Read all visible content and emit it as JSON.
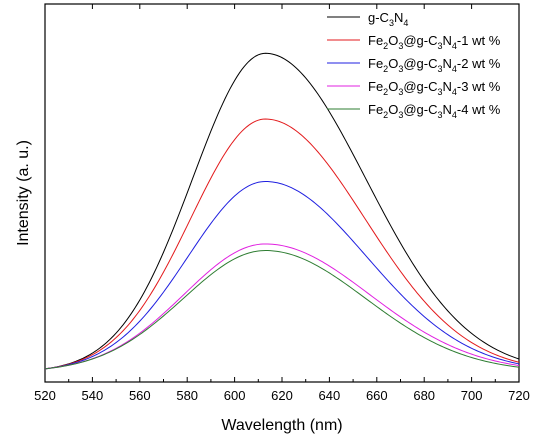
{
  "chart_data": {
    "type": "line",
    "xlabel": "Wavelength (nm)",
    "ylabel": "Intensity (a. u.)",
    "xlim": [
      520,
      720
    ],
    "x_ticks": [
      "520",
      "540",
      "560",
      "580",
      "600",
      "620",
      "640",
      "660",
      "680",
      "700",
      "720"
    ],
    "y_ticks_shown": false,
    "ylim": [
      0,
      1.15
    ],
    "legend_position": "top-right",
    "grid": false,
    "peak_x": 613,
    "baseline": 0.03,
    "series": [
      {
        "name": "g-C3N4",
        "name_parts": {
          "base": "g-C",
          "sub1": "3",
          "mid": "N",
          "sub2": "4",
          "tail": ""
        },
        "prefix": null,
        "color": "#000000",
        "peak": 1.0,
        "tail_720": 0.07
      },
      {
        "name": "Fe2O3@g-C3N4-1 wt %",
        "name_parts": {
          "base": "g-C",
          "sub1": "3",
          "mid": "N",
          "sub2": "4",
          "tail": "-1 wt %"
        },
        "prefix": {
          "a": "Fe",
          "s1": "2",
          "b": "O",
          "s2": "3",
          "c": "@"
        },
        "color": "#e31a1c",
        "peak": 0.8,
        "tail_720": 0.06
      },
      {
        "name": "Fe2O3@g-C3N4-2 wt %",
        "name_parts": {
          "base": "g-C",
          "sub1": "3",
          "mid": "N",
          "sub2": "4",
          "tail": "-2 wt %"
        },
        "prefix": {
          "a": "Fe",
          "s1": "2",
          "b": "O",
          "s2": "3",
          "c": "@"
        },
        "color": "#1f1fe0",
        "peak": 0.61,
        "tail_720": 0.055
      },
      {
        "name": "Fe2O3@g-C3N4-3 wt %",
        "name_parts": {
          "base": "g-C",
          "sub1": "3",
          "mid": "N",
          "sub2": "4",
          "tail": "-3 wt %"
        },
        "prefix": {
          "a": "Fe",
          "s1": "2",
          "b": "O",
          "s2": "3",
          "c": "@"
        },
        "color": "#e020e0",
        "peak": 0.42,
        "tail_720": 0.05
      },
      {
        "name": "Fe2O3@g-C3N4-4 wt %",
        "name_parts": {
          "base": "g-C",
          "sub1": "3",
          "mid": "N",
          "sub2": "4",
          "tail": "-4 wt %"
        },
        "prefix": {
          "a": "Fe",
          "s1": "2",
          "b": "O",
          "s2": "3",
          "c": "@"
        },
        "color": "#2e7d32",
        "peak": 0.4,
        "tail_720": 0.045
      }
    ]
  }
}
